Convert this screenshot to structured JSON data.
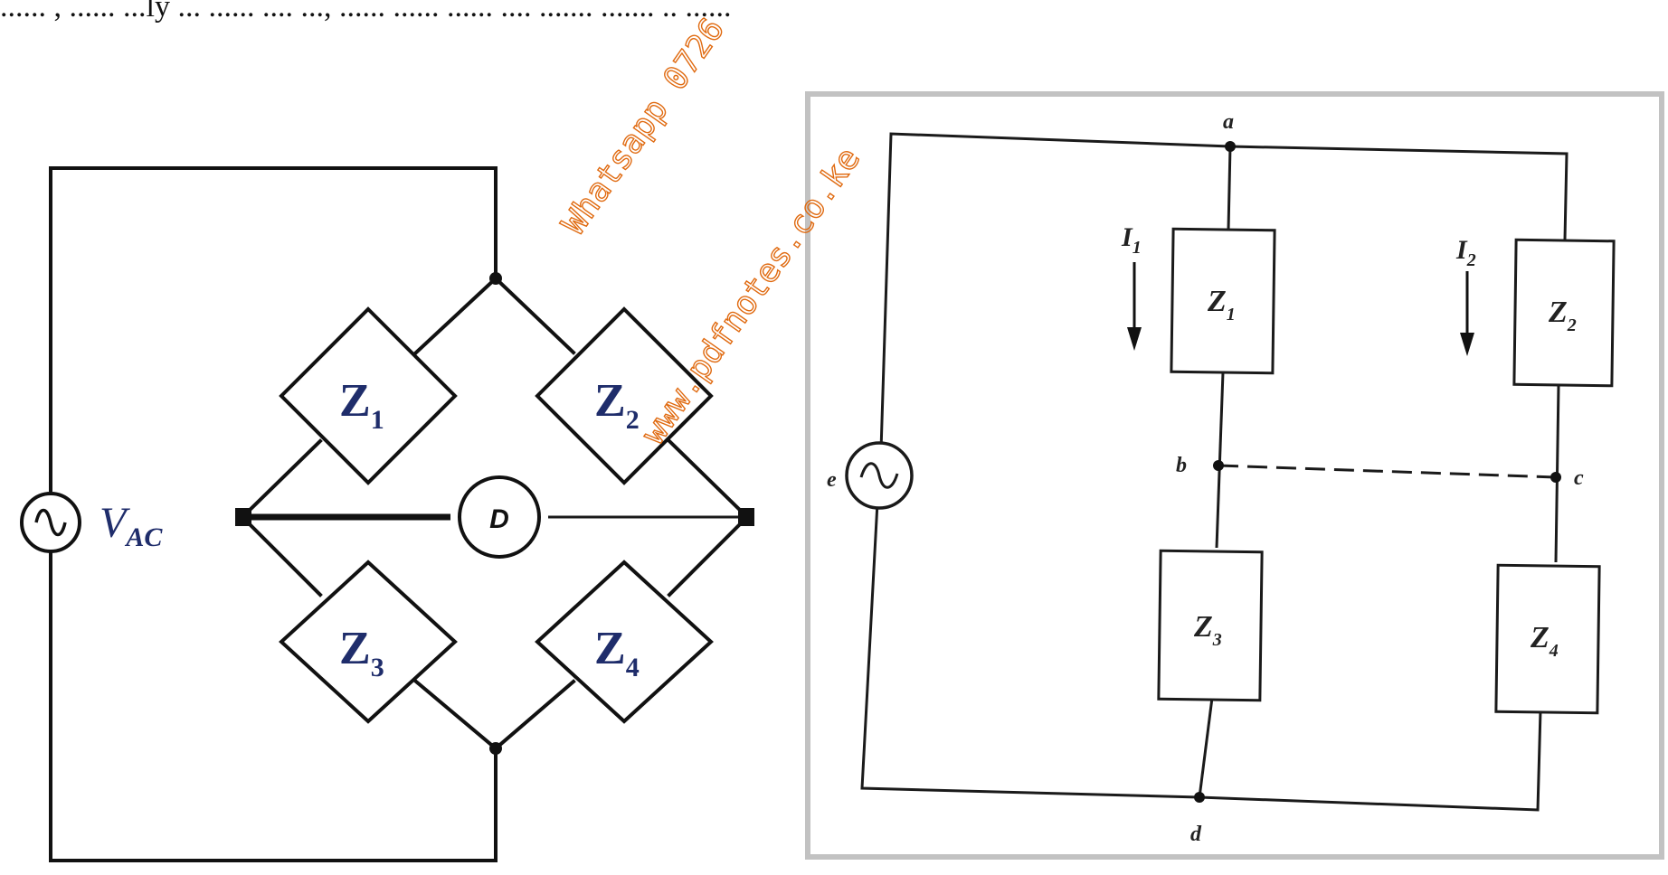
{
  "header_fragment": "...... , ...... ...ly ... ...... .... ..., ...... ...... ...... .... ....... ....... .. ......",
  "left_bridge": {
    "source_label": "V",
    "source_subscript": "AC",
    "detector_label": "D",
    "impedances": [
      {
        "label": "Z",
        "sub": "1"
      },
      {
        "label": "Z",
        "sub": "2"
      },
      {
        "label": "Z",
        "sub": "3"
      },
      {
        "label": "Z",
        "sub": "4"
      }
    ]
  },
  "right_bridge": {
    "source_label": "e",
    "nodes": [
      "a",
      "b",
      "c",
      "d"
    ],
    "currents": [
      {
        "label": "I",
        "sub": "1"
      },
      {
        "label": "I",
        "sub": "2"
      }
    ],
    "impedances": [
      {
        "label": "Z",
        "sub": "1"
      },
      {
        "label": "Z",
        "sub": "2"
      },
      {
        "label": "Z",
        "sub": "3"
      },
      {
        "label": "Z",
        "sub": "4"
      }
    ]
  },
  "watermark": {
    "line1": "Whatsapp 0726",
    "line2": "www.pdfnotes.co.ke",
    "color": "#e06a10"
  }
}
